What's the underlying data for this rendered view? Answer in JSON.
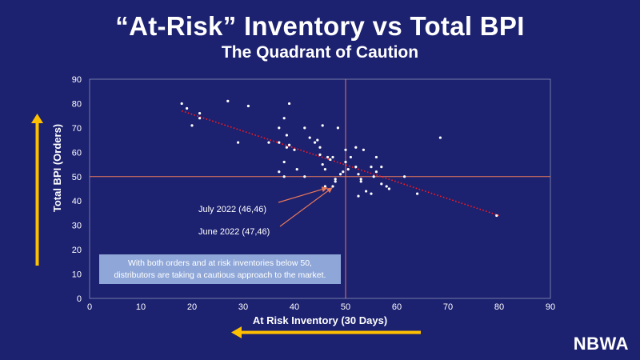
{
  "chart_data": {
    "type": "scatter",
    "title": "“At-Risk” Inventory vs Total BPI",
    "subtitle": "The Quadrant of Caution",
    "xlabel": "At Risk Inventory (30 Days)",
    "ylabel": "Total BPI (Orders)",
    "xlim": [
      0,
      90
    ],
    "ylim": [
      0,
      90
    ],
    "xticks": [
      "0",
      "10",
      "20",
      "30",
      "40",
      "50",
      "60",
      "70",
      "80",
      "90"
    ],
    "yticks": [
      "0",
      "10",
      "20",
      "30",
      "40",
      "50",
      "60",
      "70",
      "80",
      "90"
    ],
    "grid": false,
    "reference_lines": {
      "x": 50,
      "y": 50
    },
    "trendline": {
      "x": [
        18,
        80
      ],
      "y": [
        77,
        34
      ]
    },
    "points": [
      [
        18,
        80
      ],
      [
        19,
        78
      ],
      [
        20,
        71
      ],
      [
        21.5,
        76
      ],
      [
        21.5,
        74
      ],
      [
        27,
        81
      ],
      [
        29,
        64
      ],
      [
        31,
        79
      ],
      [
        35,
        64
      ],
      [
        37,
        70
      ],
      [
        37,
        64
      ],
      [
        37,
        52
      ],
      [
        38,
        74
      ],
      [
        38,
        56
      ],
      [
        38,
        50
      ],
      [
        38.5,
        67
      ],
      [
        38.5,
        62
      ],
      [
        39,
        80
      ],
      [
        39,
        63
      ],
      [
        40,
        61
      ],
      [
        40.5,
        53
      ],
      [
        42,
        70
      ],
      [
        42,
        50
      ],
      [
        43,
        66
      ],
      [
        44,
        64
      ],
      [
        44.5,
        65
      ],
      [
        45,
        62
      ],
      [
        45,
        59
      ],
      [
        45.5,
        71
      ],
      [
        45.5,
        55
      ],
      [
        46,
        53
      ],
      [
        46,
        46
      ],
      [
        46.5,
        58
      ],
      [
        47,
        57
      ],
      [
        47.5,
        58
      ],
      [
        47.5,
        46
      ],
      [
        48,
        49
      ],
      [
        48,
        48
      ],
      [
        48.5,
        70
      ],
      [
        49,
        51
      ],
      [
        49.5,
        52
      ],
      [
        50,
        61
      ],
      [
        50,
        56
      ],
      [
        50.5,
        53
      ],
      [
        51,
        58
      ],
      [
        52,
        62
      ],
      [
        52,
        54
      ],
      [
        52.5,
        51
      ],
      [
        52.5,
        42
      ],
      [
        53,
        49
      ],
      [
        53,
        48
      ],
      [
        53.5,
        61
      ],
      [
        54,
        44
      ],
      [
        55,
        54
      ],
      [
        55,
        43
      ],
      [
        55.5,
        50
      ],
      [
        56,
        58
      ],
      [
        56,
        52
      ],
      [
        57,
        54
      ],
      [
        57,
        47
      ],
      [
        58,
        46
      ],
      [
        58.5,
        45
      ],
      [
        61.5,
        50
      ],
      [
        64,
        43
      ],
      [
        68.5,
        66
      ],
      [
        79.5,
        34
      ]
    ],
    "annotations": [
      {
        "text": "July 2022 (46,46)",
        "x": 46,
        "y": 46
      },
      {
        "text": "June 2022 (47,46)",
        "x": 47,
        "y": 46
      }
    ],
    "note": "With both orders and at risk inventories below 50, distributors are taking a cautious approach to the market.",
    "colors": {
      "background": "#1c2170",
      "points": "#ffffff",
      "trendline": "#ff1a1a",
      "reference": "#e8785a",
      "arrows": "#ffc000"
    }
  },
  "note_line1": "With both orders and at risk inventories below 50,",
  "note_line2": "distributors are taking a cautious approach to the market.",
  "logo": "NBWA"
}
